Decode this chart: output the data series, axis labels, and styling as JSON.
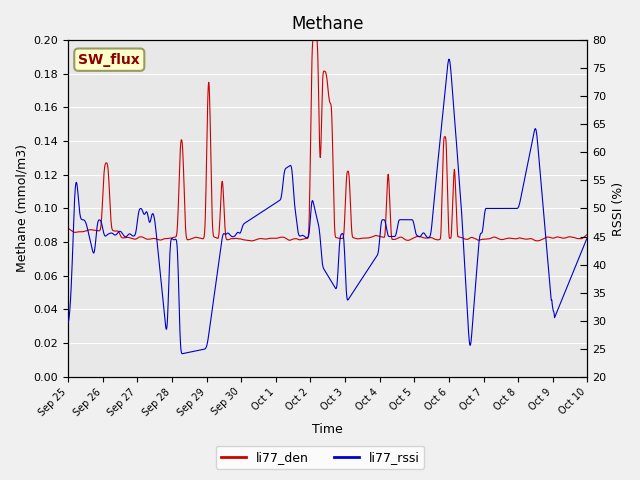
{
  "title": "Methane",
  "ylabel_left": "Methane (mmol/m3)",
  "ylabel_right": "RSSI (%)",
  "xlabel": "Time",
  "ylim_left": [
    0.0,
    0.2
  ],
  "ylim_right": [
    20,
    80
  ],
  "yticks_left": [
    0.0,
    0.02,
    0.04,
    0.06,
    0.08,
    0.1,
    0.12,
    0.14,
    0.16,
    0.18,
    0.2
  ],
  "yticks_right": [
    20,
    25,
    30,
    35,
    40,
    45,
    50,
    55,
    60,
    65,
    70,
    75,
    80
  ],
  "xtick_labels": [
    "Sep 25",
    "Sep 26",
    "Sep 27",
    "Sep 28",
    "Sep 29",
    "Sep 30",
    "Oct 1",
    "Oct 2",
    "Oct 3",
    "Oct 4",
    "Oct 5",
    "Oct 6",
    "Oct 7",
    "Oct 8",
    "Oct 9",
    "Oct 10"
  ],
  "line1_color": "#CC0000",
  "line2_color": "#0000CC",
  "line1_label": "li77_den",
  "line2_label": "li77_rssi",
  "bg_color": "#E8E8E8",
  "grid_color": "#FFFFFF",
  "annotation_text": "SW_flux",
  "annotation_bg": "#FFFFCC",
  "annotation_border": "#999966"
}
